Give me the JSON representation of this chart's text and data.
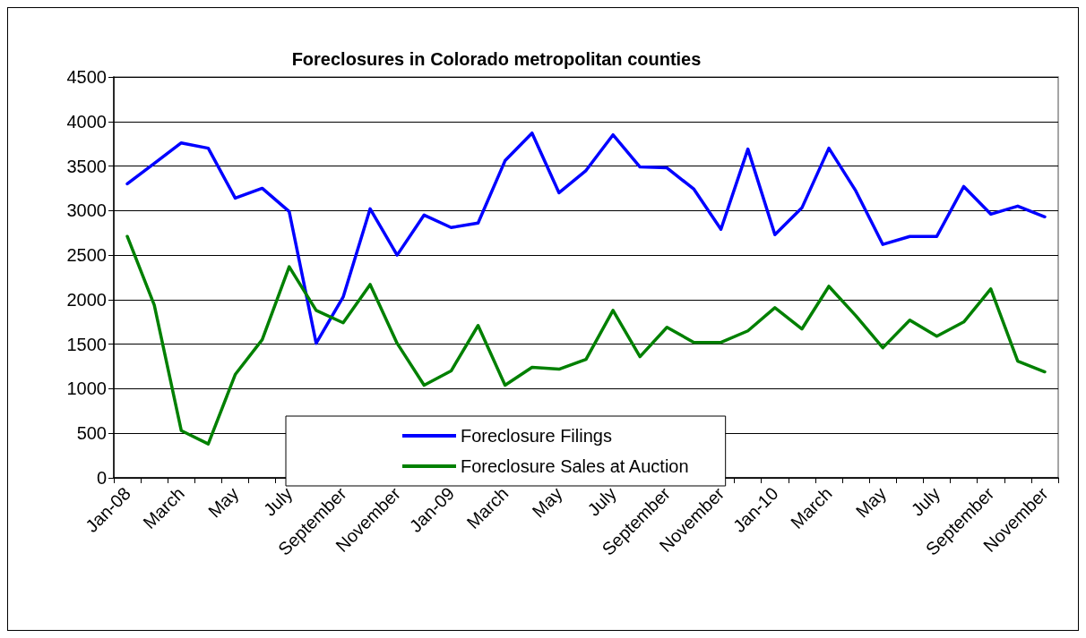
{
  "chart_data": {
    "type": "line",
    "title": "Foreclosures in Colorado metropolitan counties",
    "categories": [
      "Jan-08",
      null,
      "March",
      null,
      "May",
      null,
      "July",
      null,
      "September",
      null,
      "November",
      null,
      "Jan-09",
      null,
      "March",
      null,
      "May",
      null,
      "July",
      null,
      "September",
      null,
      "November",
      null,
      "Jan-10",
      null,
      "March",
      null,
      "May",
      null,
      "July",
      null,
      "September",
      null,
      "November"
    ],
    "series": [
      {
        "name": "Foreclosure Filings",
        "color": "#0000ff",
        "values": [
          3300,
          3530,
          3760,
          3700,
          3140,
          3250,
          2990,
          1510,
          2030,
          3020,
          2500,
          2950,
          2810,
          2860,
          3560,
          3870,
          3200,
          3450,
          3850,
          3490,
          3480,
          3240,
          2790,
          3690,
          2730,
          3030,
          3700,
          3220,
          2620,
          2710,
          2710,
          3270,
          2960,
          3050,
          2930
        ]
      },
      {
        "name": "Foreclosure Sales at Auction",
        "color": "#008000",
        "values": [
          2710,
          1940,
          530,
          380,
          1160,
          1550,
          2370,
          1880,
          1740,
          2170,
          1510,
          1040,
          1200,
          1710,
          1040,
          1240,
          1220,
          1330,
          1880,
          1360,
          1690,
          1520,
          1520,
          1650,
          1910,
          1670,
          2150,
          1820,
          1460,
          1770,
          1590,
          1750,
          2120,
          1310,
          1190
        ]
      }
    ],
    "ylim": [
      0,
      4500
    ],
    "yticks": [
      0,
      500,
      1000,
      1500,
      2000,
      2500,
      3000,
      3500,
      4000,
      4500
    ],
    "grid": "y",
    "legend": "bottom",
    "marker": "none",
    "line_style": "solid"
  }
}
